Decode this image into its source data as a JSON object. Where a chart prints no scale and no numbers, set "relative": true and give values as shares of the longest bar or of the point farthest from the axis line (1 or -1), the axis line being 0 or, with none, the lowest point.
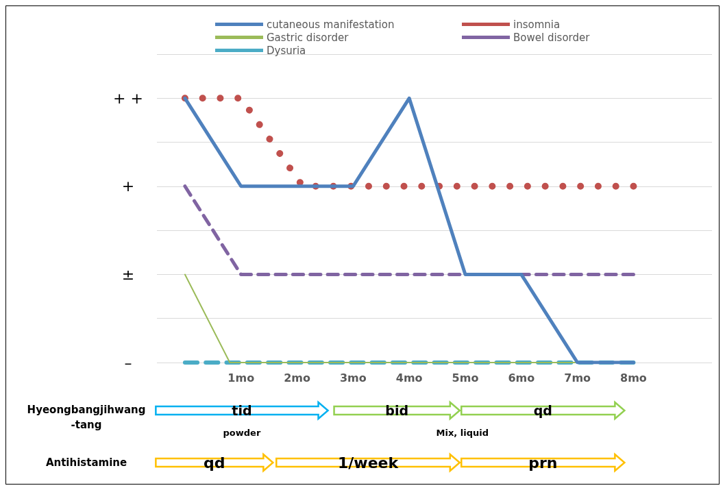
{
  "chart_data": {
    "type": "line",
    "legend": "top",
    "grid": "y",
    "marker": "none",
    "relative": true,
    "xlim": [
      -0.5,
      9.4
    ],
    "xticks": [
      {
        "value": 1,
        "label": "1mo"
      },
      {
        "value": 2,
        "label": "2mo"
      },
      {
        "value": 3,
        "label": "3mo"
      },
      {
        "value": 4,
        "label": "4mo"
      },
      {
        "value": 5,
        "label": "5mo"
      },
      {
        "value": 6,
        "label": "6mo"
      },
      {
        "value": 7,
        "label": "7mo"
      },
      {
        "value": 8,
        "label": "8mo"
      }
    ],
    "series": [
      {
        "name": "cutaneous manifestation",
        "color": "#4f81bd",
        "line_style": "solid",
        "x": [
          0,
          1,
          3,
          4,
          5,
          6,
          7,
          8
        ],
        "values": [
          1,
          0.667,
          0.667,
          1,
          0.333,
          0.333,
          0,
          0
        ]
      },
      {
        "name": "insomnia",
        "color": "#c0504d",
        "line_style": "dotted",
        "x": [
          0,
          1,
          2.1,
          8
        ],
        "values": [
          1,
          1,
          0.667,
          0.667
        ]
      },
      {
        "name": "Gastric disorder",
        "color": "#9bbb59",
        "line_style": "solid",
        "x": [
          0,
          0.8,
          8
        ],
        "values": [
          0.333,
          0,
          0
        ]
      },
      {
        "name": "Bowel disorder",
        "color": "#8064a2",
        "line_style": "dashed",
        "x": [
          0,
          1,
          8
        ],
        "values": [
          0.667,
          0.333,
          0.333
        ]
      },
      {
        "name": "Dysuria",
        "color": "#4bacc6",
        "line_style": "dashed",
        "x": [
          0,
          8
        ],
        "values": [
          0,
          0
        ]
      }
    ],
    "annotations": [
      "Hyeongbangjihwang\n-tang",
      "tid",
      "powder",
      "bid",
      "Mix, liquid",
      "qd",
      "Antihistamine",
      "qd",
      "1/week",
      "prn",
      "–",
      "±",
      "+",
      "+ +"
    ]
  }
}
